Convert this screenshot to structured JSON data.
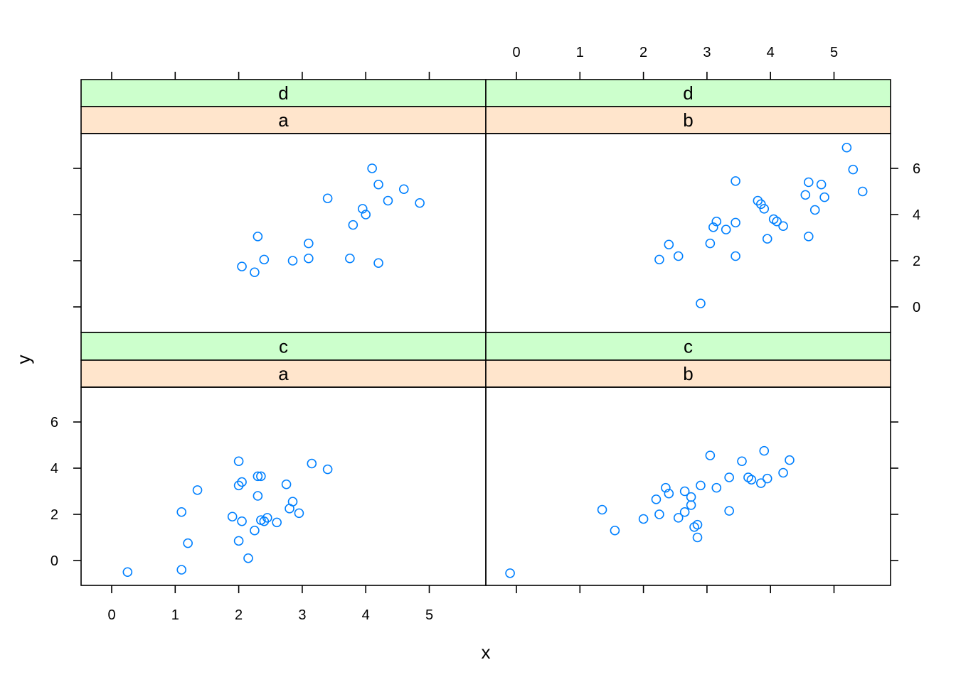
{
  "chart_data": {
    "type": "scatter",
    "layout": "2x2 lattice (trellis) panels",
    "xlabel": "x",
    "ylabel": "y",
    "xlim": [
      -0.5,
      5.9
    ],
    "ylim": [
      -1.1,
      7.5
    ],
    "x_ticks": [
      0,
      1,
      2,
      3,
      4,
      5
    ],
    "y_ticks": [
      0,
      2,
      4,
      6
    ],
    "grid": false,
    "legend": "none",
    "colors": {
      "point": "#0080ff",
      "strip_outer": "#ccffcc",
      "strip_inner": "#ffe5cc"
    },
    "panels": [
      {
        "row": "top",
        "col": "left",
        "strips": [
          "d",
          "a"
        ],
        "x": [
          2.05,
          2.25,
          2.3,
          2.4,
          2.85,
          3.1,
          3.1,
          3.4,
          3.75,
          3.8,
          3.95,
          4.0,
          4.1,
          4.2,
          4.2,
          4.35,
          4.6,
          4.85
        ],
        "y": [
          1.75,
          1.5,
          3.05,
          2.05,
          2.0,
          2.75,
          2.1,
          4.7,
          2.1,
          3.55,
          4.25,
          4.0,
          6.0,
          1.9,
          5.3,
          4.6,
          5.1,
          4.5
        ]
      },
      {
        "row": "top",
        "col": "right",
        "strips": [
          "d",
          "b"
        ],
        "x": [
          2.25,
          2.4,
          2.55,
          2.9,
          3.05,
          3.1,
          3.15,
          3.3,
          3.45,
          3.45,
          3.45,
          3.8,
          3.85,
          3.9,
          3.95,
          4.05,
          4.1,
          4.2,
          4.55,
          4.6,
          4.6,
          4.7,
          4.8,
          4.85,
          5.2,
          5.3,
          5.45
        ],
        "y": [
          2.05,
          2.7,
          2.2,
          0.15,
          2.75,
          3.45,
          3.7,
          3.35,
          3.65,
          2.2,
          5.45,
          4.6,
          4.45,
          4.25,
          2.95,
          3.8,
          3.7,
          3.5,
          4.85,
          3.05,
          5.4,
          4.2,
          5.3,
          4.75,
          6.9,
          5.95,
          5.0
        ]
      },
      {
        "row": "bottom",
        "col": "left",
        "strips": [
          "c",
          "a"
        ],
        "x": [
          0.25,
          1.1,
          1.1,
          1.2,
          1.35,
          1.9,
          2.0,
          2.0,
          2.0,
          2.05,
          2.05,
          2.15,
          2.25,
          2.3,
          2.3,
          2.35,
          2.35,
          2.4,
          2.45,
          2.6,
          2.75,
          2.8,
          2.85,
          2.95,
          3.15,
          3.4
        ],
        "y": [
          -0.5,
          -0.4,
          2.1,
          0.75,
          3.05,
          1.9,
          3.25,
          4.3,
          0.85,
          1.7,
          3.4,
          0.1,
          1.3,
          2.8,
          3.65,
          3.65,
          1.75,
          1.7,
          1.85,
          1.65,
          3.3,
          2.25,
          2.55,
          2.05,
          4.2,
          3.95
        ]
      },
      {
        "row": "bottom",
        "col": "right",
        "strips": [
          "c",
          "b"
        ],
        "x": [
          -0.1,
          1.35,
          1.55,
          2.0,
          2.2,
          2.25,
          2.35,
          2.4,
          2.55,
          2.65,
          2.65,
          2.75,
          2.75,
          2.8,
          2.85,
          2.85,
          2.9,
          3.05,
          3.15,
          3.35,
          3.35,
          3.55,
          3.65,
          3.7,
          3.85,
          3.9,
          3.95,
          4.2,
          4.3
        ],
        "y": [
          -0.55,
          2.2,
          1.3,
          1.8,
          2.65,
          2.0,
          3.15,
          2.9,
          1.85,
          3.0,
          2.1,
          2.75,
          2.4,
          1.45,
          1.55,
          1.0,
          3.25,
          4.55,
          3.15,
          3.6,
          2.15,
          4.3,
          3.6,
          3.5,
          3.35,
          4.75,
          3.55,
          3.8,
          4.35
        ]
      }
    ]
  }
}
